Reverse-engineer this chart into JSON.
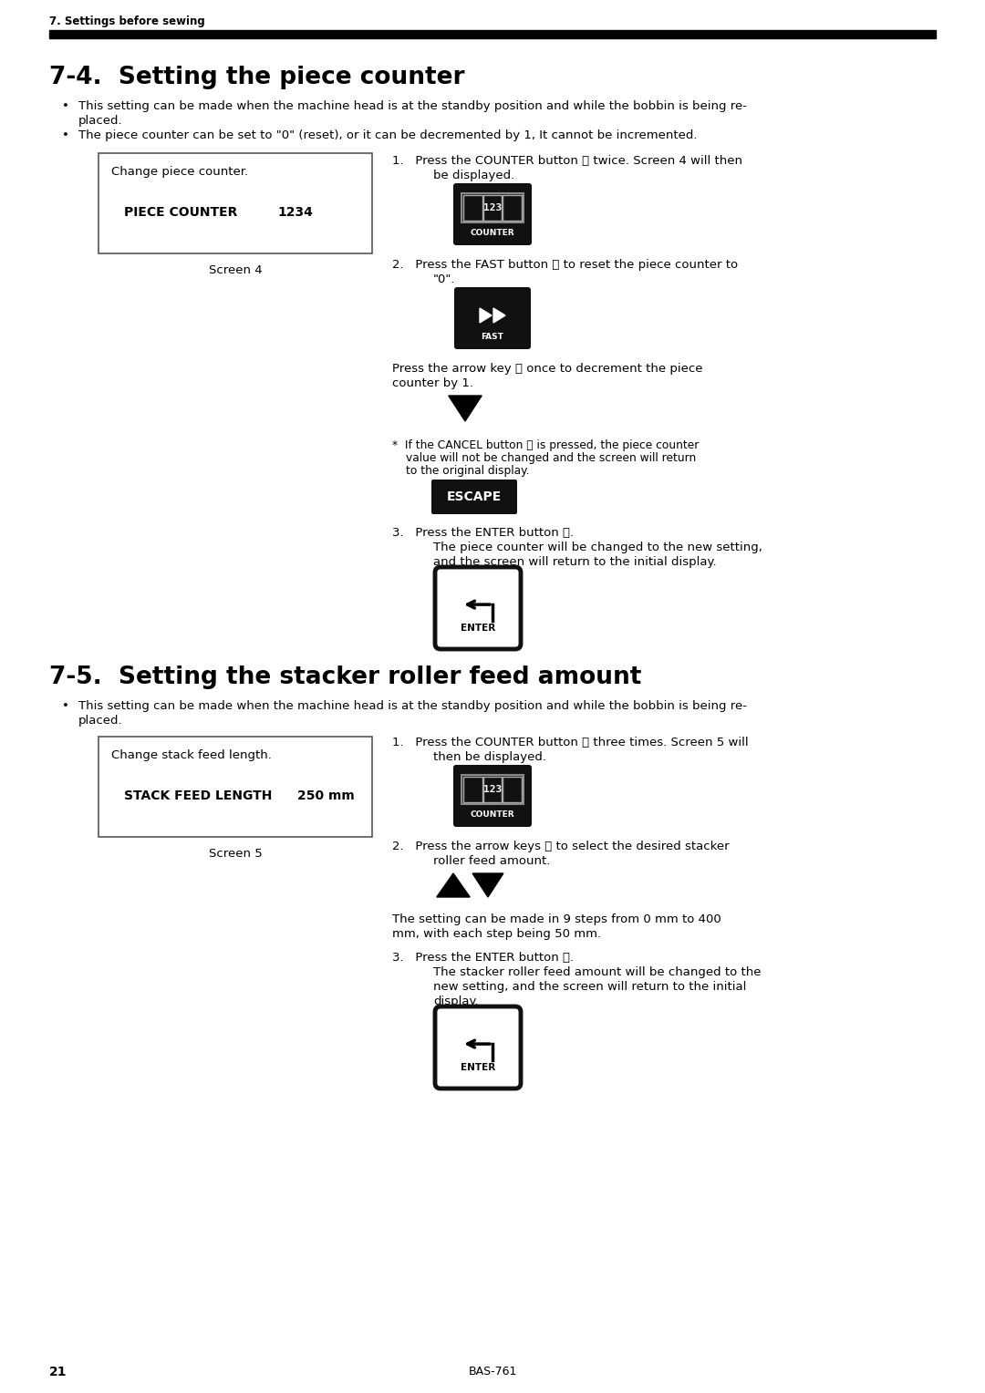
{
  "page_number": "21",
  "model": "BAS-761",
  "section_header": "7. Settings before sewing",
  "section_74_title": "7-4.  Setting the piece counter",
  "section_75_title": "7-5.  Setting the stacker roller feed amount",
  "bullet_74_1a": "This setting can be made when the machine head is at the standby position and while the bobbin is being re-",
  "bullet_74_1b": "placed.",
  "bullet_74_2": "The piece counter can be set to \"0\" (reset), or it can be decremented by 1, It cannot be incremented.",
  "screen4_line1": "Change piece counter.",
  "screen4_line2": "PIECE COUNTER",
  "screen4_line2b": "1234",
  "screen4_label": "Screen 4",
  "step1_74_a": "1.   Press the COUNTER button Ⓒ twice. Screen 4 will then",
  "step1_74_b": "be displayed.",
  "step2_74_a": "2.   Press the FAST button Ⓗ to reset the piece counter to",
  "step2_74_b": "\"0\".",
  "step2_74_arrow_a": "Press the arrow key Ⓗ once to decrement the piece",
  "step2_74_arrow_b": "counter by 1.",
  "step_74_star_a": "*  If the CANCEL button Ⓙ is pressed, the piece counter",
  "step_74_star_b": "value will not be changed and the screen will return",
  "step_74_star_c": "to the original display.",
  "step3_74_a": "3.   Press the ENTER button Ⓚ.",
  "step3_74_b": "The piece counter will be changed to the new setting,",
  "step3_74_c": "and the screen will return to the initial display.",
  "bullet_75_1a": "This setting can be made when the machine head is at the standby position and while the bobbin is being re-",
  "bullet_75_1b": "placed.",
  "screen5_line1": "Change stack feed length.",
  "screen5_line2": "STACK FEED LENGTH",
  "screen5_line2b": "250 mm",
  "screen5_label": "Screen 5",
  "step1_75_a": "1.   Press the COUNTER button Ⓒ three times. Screen 5 will",
  "step1_75_b": "then be displayed.",
  "step2_75_a": "2.   Press the arrow keys Ⓗ to select the desired stacker",
  "step2_75_b": "roller feed amount.",
  "step2_75_info_a": "The setting can be made in 9 steps from 0 mm to 400",
  "step2_75_info_b": "mm, with each step being 50 mm.",
  "step3_75_a": "3.   Press the ENTER button Ⓚ.",
  "step3_75_b": "The stacker roller feed amount will be changed to the",
  "step3_75_c": "new setting, and the screen will return to the initial",
  "step3_75_d": "display.",
  "bg_color": "#ffffff",
  "text_color": "#000000",
  "header_bar_color": "#000000"
}
